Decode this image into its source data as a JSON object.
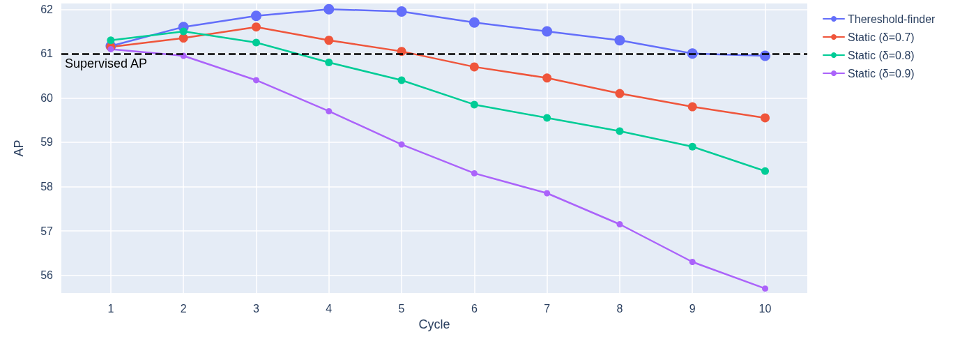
{
  "chart_data": {
    "type": "line",
    "xlabel": "Cycle",
    "ylabel": "AP",
    "x": [
      1,
      2,
      3,
      4,
      5,
      6,
      7,
      8,
      9,
      10
    ],
    "xlim": [
      0.32,
      10.58
    ],
    "xticks": [
      1,
      2,
      3,
      4,
      5,
      6,
      7,
      8,
      9,
      10
    ],
    "ylim": [
      55.6,
      62.13
    ],
    "yticks": [
      56,
      57,
      58,
      59,
      60,
      61,
      62
    ],
    "grid": true,
    "legend": "top right",
    "marker": "circle",
    "line_style": "solid",
    "ref_lines": [
      {
        "axis": "y",
        "value": 61,
        "label": "Supervised AP",
        "color": "#000000",
        "line_style": "dashed"
      }
    ],
    "series": [
      {
        "name": "Thereshold-finder",
        "color": "#636efa",
        "values": [
          61.17,
          61.6,
          61.85,
          62.0,
          61.95,
          61.7,
          61.5,
          61.3,
          61.0,
          60.95
        ]
      },
      {
        "name": "Static (δ=0.7)",
        "color": "#ef553b",
        "values": [
          61.15,
          61.35,
          61.6,
          61.3,
          61.05,
          60.7,
          60.45,
          60.1,
          59.8,
          59.55
        ]
      },
      {
        "name": "Static (δ=0.8)",
        "color": "#00cc96",
        "values": [
          61.3,
          61.5,
          61.25,
          60.8,
          60.4,
          59.85,
          59.55,
          59.25,
          58.9,
          58.35
        ]
      },
      {
        "name": "Static (δ=0.9)",
        "color": "#ab63fa",
        "values": [
          61.1,
          60.95,
          60.4,
          59.7,
          58.95,
          58.3,
          57.85,
          57.15,
          56.3,
          55.7
        ]
      }
    ]
  }
}
